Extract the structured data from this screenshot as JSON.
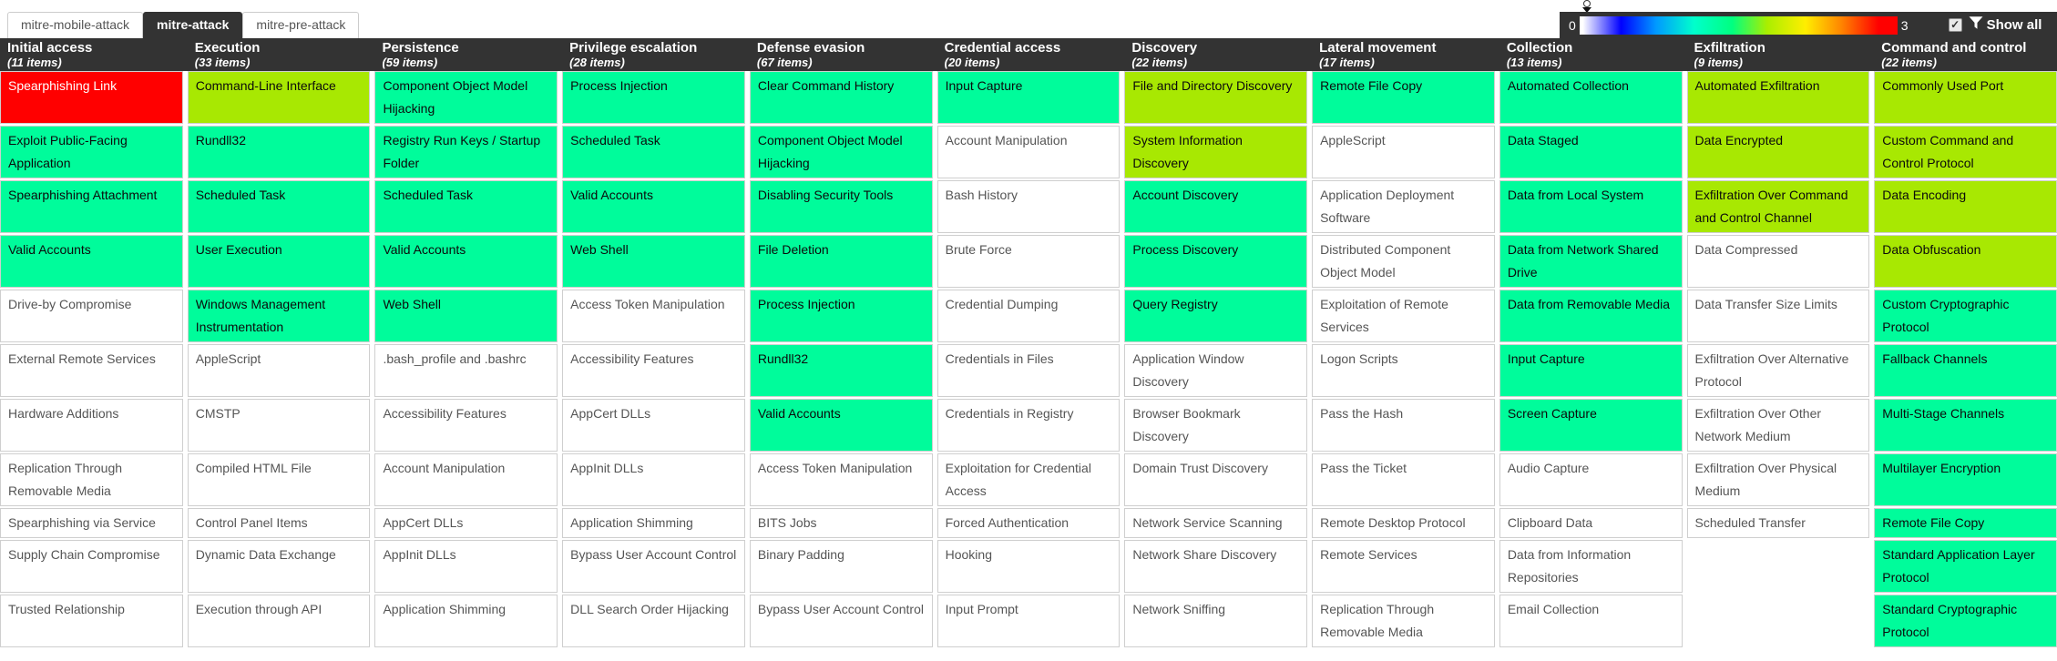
{
  "tabs": [
    {
      "label": "mitre-mobile-attack",
      "active": false
    },
    {
      "label": "mitre-attack",
      "active": true
    },
    {
      "label": "mitre-pre-attack",
      "active": false
    }
  ],
  "score_legend": {
    "min_label": "0",
    "max_label": "3",
    "show_all_label": "Show all",
    "checkbox_checked": true,
    "checkmark": "✓",
    "gradient_stops": [
      "#ffffff",
      "#0000ff",
      "#0099ff",
      "#00ffcc",
      "#00ff80",
      "#aaee00",
      "#ffee00",
      "#ff8800",
      "#ff0000"
    ]
  },
  "colors": {
    "score1": "#00FC9B",
    "score2": "#A8E802",
    "score3": "#FF0000",
    "header_bg": "#333333"
  },
  "matrix": {
    "columns": [
      {
        "name": "Initial access",
        "items": "(11 items)",
        "cells": [
          [
            "Spearphishing Link",
            3
          ],
          [
            "Exploit Public-Facing Application",
            1
          ],
          [
            "Spearphishing Attachment",
            1
          ],
          [
            "Valid Accounts",
            1
          ],
          [
            "Drive-by Compromise",
            0
          ],
          [
            "External Remote Services",
            0
          ],
          [
            "Hardware Additions",
            0
          ],
          [
            "Replication Through Removable Media",
            0
          ],
          [
            "Spearphishing via Service",
            0
          ],
          [
            "Supply Chain Compromise",
            0
          ],
          [
            "Trusted Relationship",
            0
          ]
        ]
      },
      {
        "name": "Execution",
        "items": "(33 items)",
        "cells": [
          [
            "Command-Line Interface",
            2
          ],
          [
            "Rundll32",
            1
          ],
          [
            "Scheduled Task",
            1
          ],
          [
            "User Execution",
            1
          ],
          [
            "Windows Management Instrumentation",
            1
          ],
          [
            "AppleScript",
            0
          ],
          [
            "CMSTP",
            0
          ],
          [
            "Compiled HTML File",
            0
          ],
          [
            "Control Panel Items",
            0
          ],
          [
            "Dynamic Data Exchange",
            0
          ],
          [
            "Execution through API",
            0
          ]
        ]
      },
      {
        "name": "Persistence",
        "items": "(59 items)",
        "cells": [
          [
            "Component Object Model Hijacking",
            1
          ],
          [
            "Registry Run Keys / Startup Folder",
            1
          ],
          [
            "Scheduled Task",
            1
          ],
          [
            "Valid Accounts",
            1
          ],
          [
            "Web Shell",
            1
          ],
          [
            ".bash_profile and .bashrc",
            0
          ],
          [
            "Accessibility Features",
            0
          ],
          [
            "Account Manipulation",
            0
          ],
          [
            "AppCert DLLs",
            0
          ],
          [
            "AppInit DLLs",
            0
          ],
          [
            "Application Shimming",
            0
          ]
        ]
      },
      {
        "name": "Privilege escalation",
        "items": "(28 items)",
        "cells": [
          [
            "Process Injection",
            1
          ],
          [
            "Scheduled Task",
            1
          ],
          [
            "Valid Accounts",
            1
          ],
          [
            "Web Shell",
            1
          ],
          [
            "Access Token Manipulation",
            0
          ],
          [
            "Accessibility Features",
            0
          ],
          [
            "AppCert DLLs",
            0
          ],
          [
            "AppInit DLLs",
            0
          ],
          [
            "Application Shimming",
            0
          ],
          [
            "Bypass User Account Control",
            0
          ],
          [
            "DLL Search Order Hijacking",
            0
          ]
        ]
      },
      {
        "name": "Defense evasion",
        "items": "(67 items)",
        "cells": [
          [
            "Clear Command History",
            1
          ],
          [
            "Component Object Model Hijacking",
            1
          ],
          [
            "Disabling Security Tools",
            1
          ],
          [
            "File Deletion",
            1
          ],
          [
            "Process Injection",
            1
          ],
          [
            "Rundll32",
            1
          ],
          [
            "Valid Accounts",
            1
          ],
          [
            "Access Token Manipulation",
            0
          ],
          [
            "BITS Jobs",
            0
          ],
          [
            "Binary Padding",
            0
          ],
          [
            "Bypass User Account Control",
            0
          ]
        ]
      },
      {
        "name": "Credential access",
        "items": "(20 items)",
        "cells": [
          [
            "Input Capture",
            1
          ],
          [
            "Account Manipulation",
            0
          ],
          [
            "Bash History",
            0
          ],
          [
            "Brute Force",
            0
          ],
          [
            "Credential Dumping",
            0
          ],
          [
            "Credentials in Files",
            0
          ],
          [
            "Credentials in Registry",
            0
          ],
          [
            "Exploitation for Credential Access",
            0
          ],
          [
            "Forced Authentication",
            0
          ],
          [
            "Hooking",
            0
          ],
          [
            "Input Prompt",
            0
          ]
        ]
      },
      {
        "name": "Discovery",
        "items": "(22 items)",
        "cells": [
          [
            "File and Directory Discovery",
            2
          ],
          [
            "System Information Discovery",
            2
          ],
          [
            "Account Discovery",
            1
          ],
          [
            "Process Discovery",
            1
          ],
          [
            "Query Registry",
            1
          ],
          [
            "Application Window Discovery",
            0
          ],
          [
            "Browser Bookmark Discovery",
            0
          ],
          [
            "Domain Trust Discovery",
            0
          ],
          [
            "Network Service Scanning",
            0
          ],
          [
            "Network Share Discovery",
            0
          ],
          [
            "Network Sniffing",
            0
          ]
        ]
      },
      {
        "name": "Lateral movement",
        "items": "(17 items)",
        "cells": [
          [
            "Remote File Copy",
            1
          ],
          [
            "AppleScript",
            0
          ],
          [
            "Application Deployment Software",
            0
          ],
          [
            "Distributed Component Object Model",
            0
          ],
          [
            "Exploitation of Remote Services",
            0
          ],
          [
            "Logon Scripts",
            0
          ],
          [
            "Pass the Hash",
            0
          ],
          [
            "Pass the Ticket",
            0
          ],
          [
            "Remote Desktop Protocol",
            0
          ],
          [
            "Remote Services",
            0
          ],
          [
            "Replication Through Removable Media",
            0
          ]
        ]
      },
      {
        "name": "Collection",
        "items": "(13 items)",
        "cells": [
          [
            "Automated Collection",
            1
          ],
          [
            "Data Staged",
            1
          ],
          [
            "Data from Local System",
            1
          ],
          [
            "Data from Network Shared Drive",
            1
          ],
          [
            "Data from Removable Media",
            1
          ],
          [
            "Input Capture",
            1
          ],
          [
            "Screen Capture",
            1
          ],
          [
            "Audio Capture",
            0
          ],
          [
            "Clipboard Data",
            0
          ],
          [
            "Data from Information Repositories",
            0
          ],
          [
            "Email Collection",
            0
          ]
        ]
      },
      {
        "name": "Exfiltration",
        "items": "(9 items)",
        "cells": [
          [
            "Automated Exfiltration",
            2
          ],
          [
            "Data Encrypted",
            2
          ],
          [
            "Exfiltration Over Command and Control Channel",
            2
          ],
          [
            "Data Compressed",
            0
          ],
          [
            "Data Transfer Size Limits",
            0
          ],
          [
            "Exfiltration Over Alternative Protocol",
            0
          ],
          [
            "Exfiltration Over Other Network Medium",
            0
          ],
          [
            "Exfiltration Over Physical Medium",
            0
          ],
          [
            "Scheduled Transfer",
            0
          ]
        ]
      },
      {
        "name": "Command and control",
        "items": "(22 items)",
        "cells": [
          [
            "Commonly Used Port",
            2
          ],
          [
            "Custom Command and Control Protocol",
            2
          ],
          [
            "Data Encoding",
            2
          ],
          [
            "Data Obfuscation",
            2
          ],
          [
            "Custom Cryptographic Protocol",
            1
          ],
          [
            "Fallback Channels",
            1
          ],
          [
            "Multi-Stage Channels",
            1
          ],
          [
            "Multilayer Encryption",
            1
          ],
          [
            "Remote File Copy",
            1
          ],
          [
            "Standard Application Layer Protocol",
            1
          ],
          [
            "Standard Cryptographic Protocol",
            1
          ]
        ]
      }
    ],
    "row_count": 11
  }
}
